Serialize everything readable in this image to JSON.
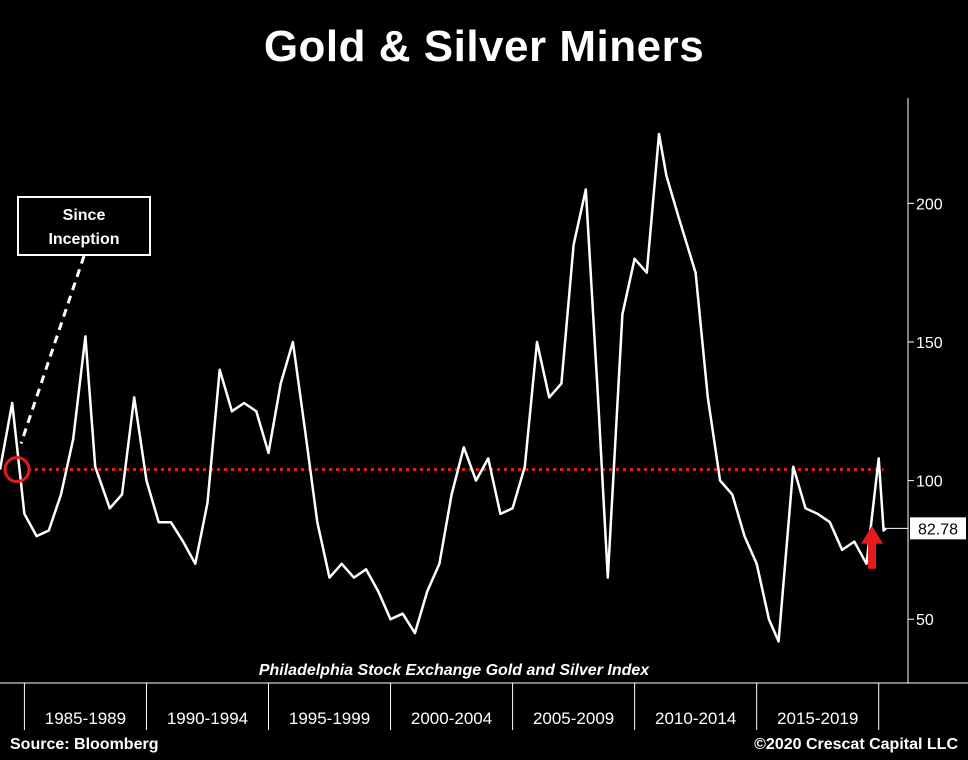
{
  "title": "Gold & Silver Miners",
  "footer": {
    "source": "Source: Bloomberg",
    "copyright": "©2020 Crescat Capital LLC"
  },
  "annotation": {
    "callout_text_1": "Since",
    "callout_text_2": "Inception",
    "marker_color": "#e31b1b"
  },
  "chart_data": {
    "type": "line",
    "title": "Gold & Silver Miners",
    "subtitle": "Philadelphia Stock Exchange Gold and Silver Index",
    "series": [
      {
        "name": "",
        "color": "#ffffff"
      }
    ],
    "x": [
      1984.0,
      1984.5,
      1985.0,
      1985.5,
      1986.0,
      1986.5,
      1987.0,
      1987.5,
      1987.9,
      1988.5,
      1989.0,
      1989.5,
      1990.0,
      1990.5,
      1991.0,
      1991.5,
      1992.0,
      1992.5,
      1993.0,
      1993.5,
      1994.0,
      1994.5,
      1995.0,
      1995.5,
      1996.0,
      1996.5,
      1997.0,
      1997.5,
      1998.0,
      1998.5,
      1999.0,
      1999.5,
      2000.0,
      2000.5,
      2001.0,
      2001.5,
      2002.0,
      2002.5,
      2003.0,
      2003.5,
      2004.0,
      2004.5,
      2005.0,
      2005.5,
      2006.0,
      2006.5,
      2007.0,
      2007.5,
      2008.0,
      2008.5,
      2008.9,
      2009.5,
      2010.0,
      2010.5,
      2011.0,
      2011.3,
      2011.8,
      2012.5,
      2013.0,
      2013.5,
      2014.0,
      2014.5,
      2015.0,
      2015.5,
      2015.9,
      2016.5,
      2017.0,
      2017.5,
      2018.0,
      2018.5,
      2019.0,
      2019.5,
      2020.0,
      2020.2,
      2020.3
    ],
    "y": [
      104,
      128,
      88,
      80,
      82,
      95,
      115,
      152,
      105,
      90,
      95,
      130,
      100,
      85,
      85,
      78,
      70,
      92,
      140,
      125,
      128,
      125,
      110,
      135,
      150,
      118,
      85,
      65,
      70,
      65,
      68,
      60,
      50,
      52,
      45,
      60,
      70,
      95,
      112,
      100,
      108,
      88,
      90,
      105,
      150,
      130,
      135,
      185,
      205,
      130,
      65,
      160,
      180,
      175,
      225,
      210,
      195,
      175,
      130,
      100,
      95,
      80,
      70,
      50,
      42,
      105,
      90,
      88,
      85,
      75,
      78,
      70,
      108,
      82,
      82.78
    ],
    "sampling_note": "",
    "last_value_label": "82.78",
    "reference_line": {
      "value": 104,
      "color": "#e31b1b",
      "style": "dotted"
    },
    "arrow_color": "#e31b1b",
    "y_ticks": [
      50,
      100,
      150,
      200
    ],
    "ylim": [
      27,
      238
    ],
    "x_range": [
      1984.0,
      2021.2
    ],
    "x_periods": [
      {
        "label": "1985-1989",
        "start": 1985,
        "end": 1990
      },
      {
        "label": "1990-1994",
        "start": 1990,
        "end": 1995
      },
      {
        "label": "1995-1999",
        "start": 1995,
        "end": 2000
      },
      {
        "label": "2000-2004",
        "start": 2000,
        "end": 2005
      },
      {
        "label": "2005-2009",
        "start": 2005,
        "end": 2010
      },
      {
        "label": "2010-2014",
        "start": 2010,
        "end": 2015
      },
      {
        "label": "2015-2019",
        "start": 2015,
        "end": 2020
      }
    ],
    "xlabel": "",
    "ylabel": "",
    "grid": false,
    "legend": "none"
  }
}
